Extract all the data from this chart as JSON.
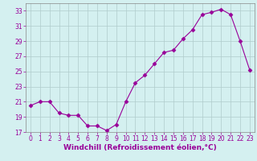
{
  "x": [
    0,
    1,
    2,
    3,
    4,
    5,
    6,
    7,
    8,
    9,
    10,
    11,
    12,
    13,
    14,
    15,
    16,
    17,
    18,
    19,
    20,
    21,
    22,
    23
  ],
  "y": [
    20.5,
    21.0,
    21.0,
    19.5,
    19.2,
    19.2,
    17.8,
    17.8,
    17.2,
    18.0,
    21.0,
    23.5,
    24.5,
    26.0,
    27.5,
    27.8,
    29.3,
    30.5,
    32.5,
    32.8,
    33.2,
    32.5,
    29.0,
    25.2
  ],
  "line_color": "#990099",
  "marker": "D",
  "marker_size": 2.5,
  "bg_color": "#d4f0f0",
  "grid_color": "#b0cccc",
  "ylim": [
    17,
    34
  ],
  "xlim": [
    -0.5,
    23.5
  ],
  "yticks": [
    17,
    19,
    21,
    23,
    25,
    27,
    29,
    31,
    33
  ],
  "xticks": [
    0,
    1,
    2,
    3,
    4,
    5,
    6,
    7,
    8,
    9,
    10,
    11,
    12,
    13,
    14,
    15,
    16,
    17,
    18,
    19,
    20,
    21,
    22,
    23
  ],
  "xlabel": "Windchill (Refroidissement éolien,°C)",
  "xlabel_fontsize": 6.5,
  "tick_fontsize": 5.5,
  "tick_color": "#990099",
  "spine_color": "#888888",
  "linewidth": 0.8
}
